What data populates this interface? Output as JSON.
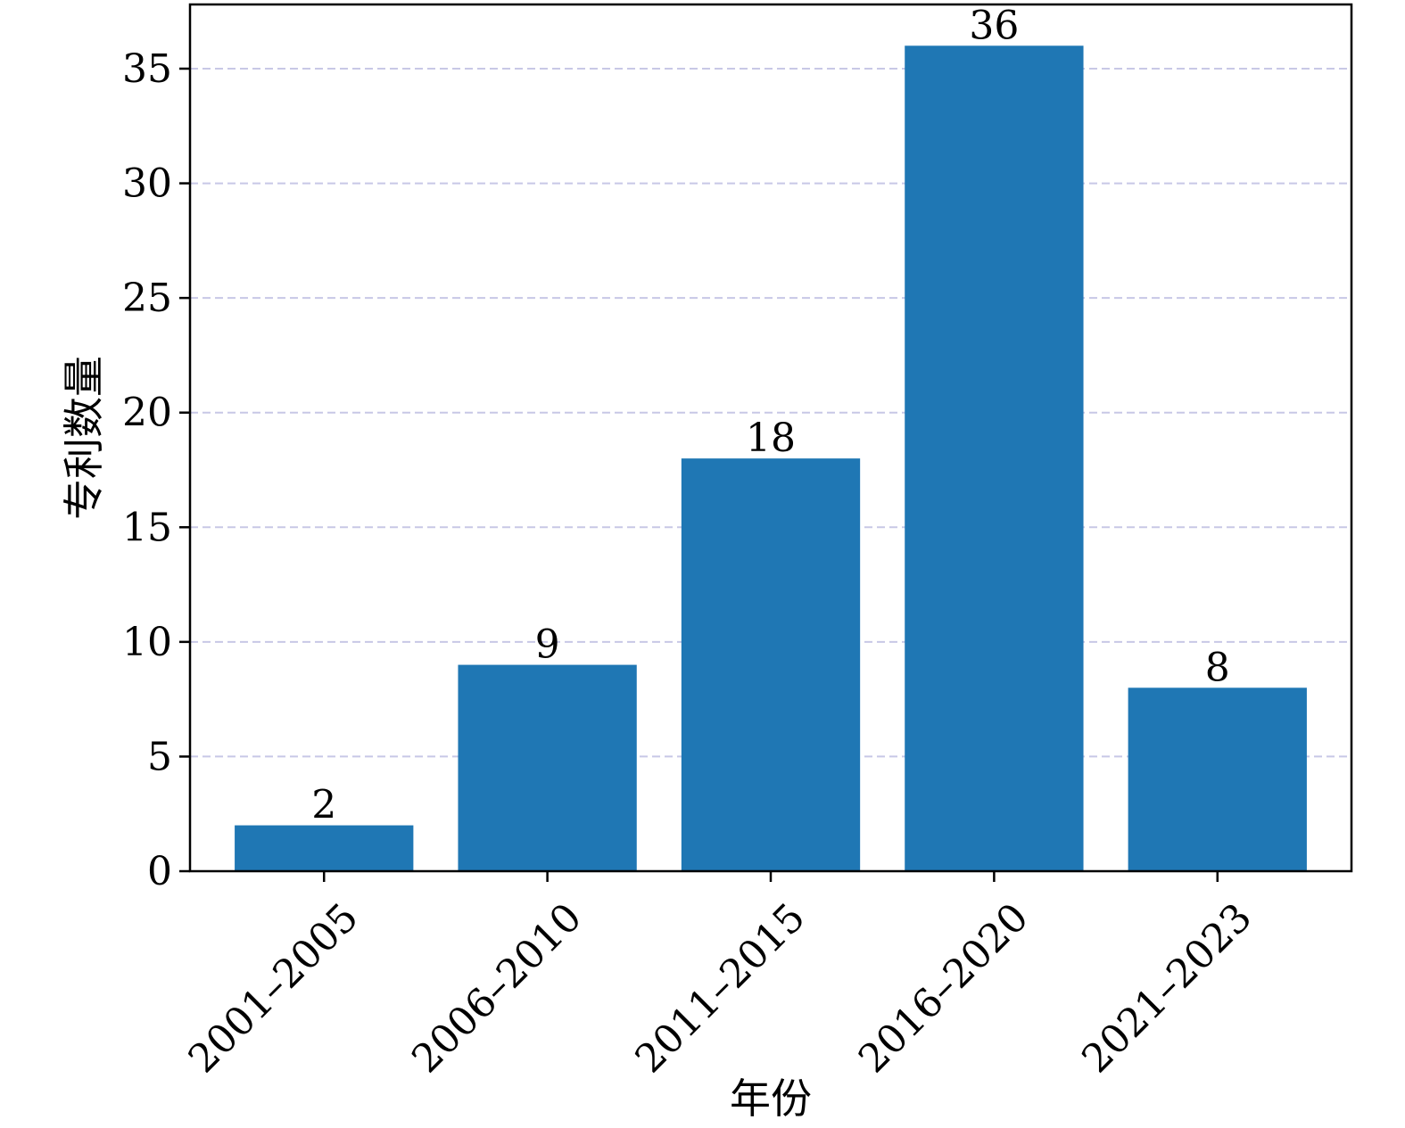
{
  "chart_data": {
    "type": "bar",
    "title": "",
    "xlabel": "年份",
    "ylabel": "专利数量",
    "categories": [
      "2001–2005",
      "2006–2010",
      "2011–2015",
      "2016–2020",
      "2021–2023"
    ],
    "values": [
      2,
      9,
      18,
      36,
      8
    ],
    "ylim": [
      0,
      37.8
    ],
    "yticks": [
      0,
      5,
      10,
      15,
      20,
      25,
      30,
      35
    ],
    "grid": "horizontal-dashed",
    "bar_color": "#1f77b4",
    "grid_color": "#c8c8e6",
    "show_value_labels": true
  }
}
